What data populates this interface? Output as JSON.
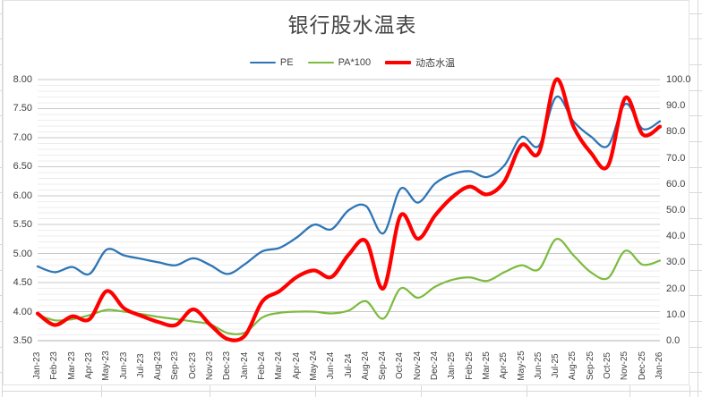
{
  "chart_data": {
    "type": "line",
    "smoothed": true,
    "title": "银行股水温表",
    "legend_position": "top",
    "gridlines": "horizontal major and minor",
    "categories": [
      "Jan-23",
      "Feb-23",
      "Mar-23",
      "Apr-23",
      "May-23",
      "Jun-23",
      "Jul-23",
      "Aug-23",
      "Sep-23",
      "Oct-23",
      "Nov-23",
      "Dec-23",
      "Jan-24",
      "Feb-24",
      "Mar-24",
      "Apr-24",
      "May-24",
      "Jun-24",
      "Jul-24",
      "Aug-24",
      "Sep-24",
      "Oct-24",
      "Nov-24",
      "Dec-24",
      "Jan-25",
      "Feb-25",
      "Mar-25",
      "Apr-25",
      "May-25",
      "Jun-25",
      "Jul-25",
      "Aug-25",
      "Sep-25",
      "Oct-25",
      "Nov-25",
      "Dec-25",
      "Jan-26"
    ],
    "series": [
      {
        "name": "PE",
        "axis": "left",
        "color": "#2E75B6",
        "thickness": 2.3,
        "values": [
          4.78,
          4.68,
          4.77,
          4.65,
          5.07,
          4.97,
          4.91,
          4.85,
          4.8,
          4.92,
          4.8,
          4.65,
          4.82,
          5.04,
          5.1,
          5.28,
          5.5,
          5.42,
          5.75,
          5.82,
          5.35,
          6.12,
          5.88,
          6.21,
          6.37,
          6.42,
          6.32,
          6.52,
          7.01,
          6.86,
          7.7,
          7.28,
          7.02,
          6.86,
          7.58,
          7.15,
          7.28
        ]
      },
      {
        "name": "PA*100",
        "axis": "left",
        "color": "#7CBB3E",
        "thickness": 2.2,
        "values": [
          3.95,
          3.85,
          3.87,
          3.94,
          4.03,
          4.0,
          3.96,
          3.91,
          3.87,
          3.83,
          3.78,
          3.63,
          3.64,
          3.9,
          3.98,
          4.0,
          4.0,
          3.97,
          4.02,
          4.18,
          3.88,
          4.4,
          4.24,
          4.43,
          4.55,
          4.59,
          4.53,
          4.68,
          4.8,
          4.73,
          5.25,
          4.97,
          4.68,
          4.58,
          5.05,
          4.81,
          4.88
        ]
      },
      {
        "name": "动态水温",
        "axis": "right",
        "color": "#FF0000",
        "thickness": 4.2,
        "values": [
          10.4,
          6.0,
          9.3,
          8.2,
          19.0,
          12.4,
          9.5,
          7.1,
          6.0,
          12.0,
          6.0,
          0.6,
          2.0,
          15.0,
          19.0,
          24.4,
          26.9,
          24.4,
          33.0,
          38.1,
          20.0,
          48.0,
          39.0,
          48.0,
          55.0,
          59.0,
          56.0,
          61.0,
          75.0,
          72.0,
          100.0,
          82.0,
          72.0,
          67.0,
          93.0,
          79.0,
          82.0
        ]
      }
    ],
    "left_axis": {
      "min": 3.5,
      "max": 8.0,
      "major_step": 0.5,
      "minor_step": 0.1,
      "tick_labels": [
        "8.00",
        "7.50",
        "7.00",
        "6.50",
        "6.00",
        "5.50",
        "5.00",
        "4.50",
        "4.00",
        "3.50"
      ]
    },
    "right_axis": {
      "min": 0.0,
      "max": 100.0,
      "step": 10.0,
      "tick_labels": [
        "100.0",
        "90.0",
        "80.0",
        "70.0",
        "60.0",
        "50.0",
        "40.0",
        "30.0",
        "20.0",
        "10.0",
        "0.0"
      ]
    }
  },
  "style": {
    "major_grid_color": "#c8c8c8",
    "minor_grid_color": "#ededed",
    "axis_line_color": "#b0b0b0",
    "title_color": "#454545",
    "label_color": "#404040",
    "cell_grid_color": "#d9d9d9"
  }
}
